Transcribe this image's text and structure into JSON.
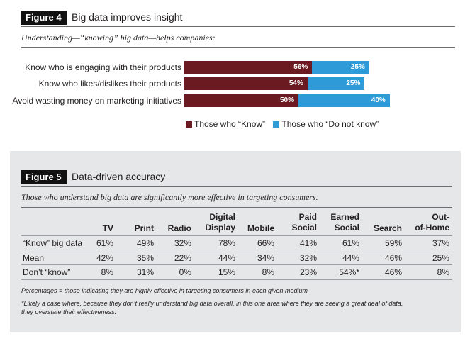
{
  "figure4": {
    "label": "Figure 4",
    "title": "Big data improves insight",
    "subtitle": "Understanding—“knowing” big data—helps companies:"
  },
  "figure5": {
    "label": "Figure 5",
    "title": "Data-driven accuracy",
    "subtitle": "Those who understand big data are significantly more effective in targeting consumers.",
    "footnote1": "Percentages = those indicating they are highly effective in targeting consumers in each given medium",
    "footnote2_line1": "*Likely a case where, because they don’t really understand big data overall, in this one area where they are seeing a great deal of data,",
    "footnote2_line2": "they overstate their effectiveness."
  },
  "chart_data": [
    {
      "type": "bar",
      "orientation": "horizontal",
      "stacked": true,
      "title": "Big data improves insight",
      "subtitle": "Understanding—“knowing” big data—helps companies:",
      "categories": [
        "Know who is engaging with their products",
        "Know who likes/dislikes their products",
        "Avoid wasting money on marketing initiatives"
      ],
      "series": [
        {
          "name": "Those who “Know”",
          "values": [
            56,
            54,
            50
          ],
          "labels": [
            "56%",
            "54%",
            "50%"
          ],
          "color": "#6b1a22"
        },
        {
          "name": "Those who “Do not know”",
          "values": [
            25,
            25,
            40
          ],
          "labels": [
            "25%",
            "25%",
            "40%"
          ],
          "color": "#2e9ad8"
        }
      ],
      "legend": "bottom",
      "unit": "%"
    },
    {
      "type": "table",
      "title": "Data-driven accuracy",
      "columns": [
        [
          "TV"
        ],
        [
          "Print"
        ],
        [
          "Radio"
        ],
        [
          "Digital",
          "Display"
        ],
        [
          "Mobile"
        ],
        [
          "Paid",
          "Social"
        ],
        [
          "Earned",
          "Social"
        ],
        [
          "Search"
        ],
        [
          "Out-",
          "of-Home"
        ]
      ],
      "rows": [
        {
          "label": "“Know” big data",
          "values": [
            "61%",
            "49%",
            "32%",
            "78%",
            "66%",
            "41%",
            "61%",
            "59%",
            "37%"
          ]
        },
        {
          "label": "Mean",
          "values": [
            "42%",
            "35%",
            "22%",
            "44%",
            "34%",
            "32%",
            "44%",
            "46%",
            "25%"
          ]
        },
        {
          "label": "Don’t “know”",
          "values": [
            "8%",
            "31%",
            "0%",
            "15%",
            "8%",
            "23%",
            "54%*",
            "46%",
            "8%"
          ]
        }
      ]
    }
  ]
}
